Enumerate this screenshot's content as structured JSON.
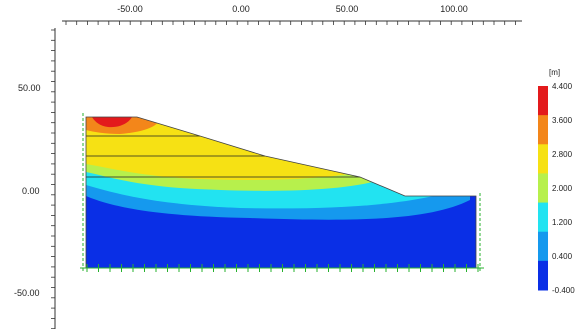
{
  "plot": {
    "x_axis": {
      "tick_labels": [
        "-50.00",
        "0.00",
        "50.00",
        "100.00"
      ],
      "tick_values": [
        -50,
        0,
        50,
        100
      ]
    },
    "y_axis": {
      "tick_labels": [
        "50.00",
        "0.00",
        "-50.00"
      ],
      "tick_values": [
        50,
        0,
        -50
      ]
    }
  },
  "legend": {
    "unit": "[m]",
    "labels": [
      "4.400",
      "3.600",
      "2.800",
      "2.000",
      "1.200",
      "0.400",
      "-0.400"
    ],
    "colors": [
      "#e31a1c",
      "#f3861a",
      "#f6e114",
      "#b7f04c",
      "#22e3f1",
      "#1599ee",
      "#0a2fe6"
    ]
  }
}
